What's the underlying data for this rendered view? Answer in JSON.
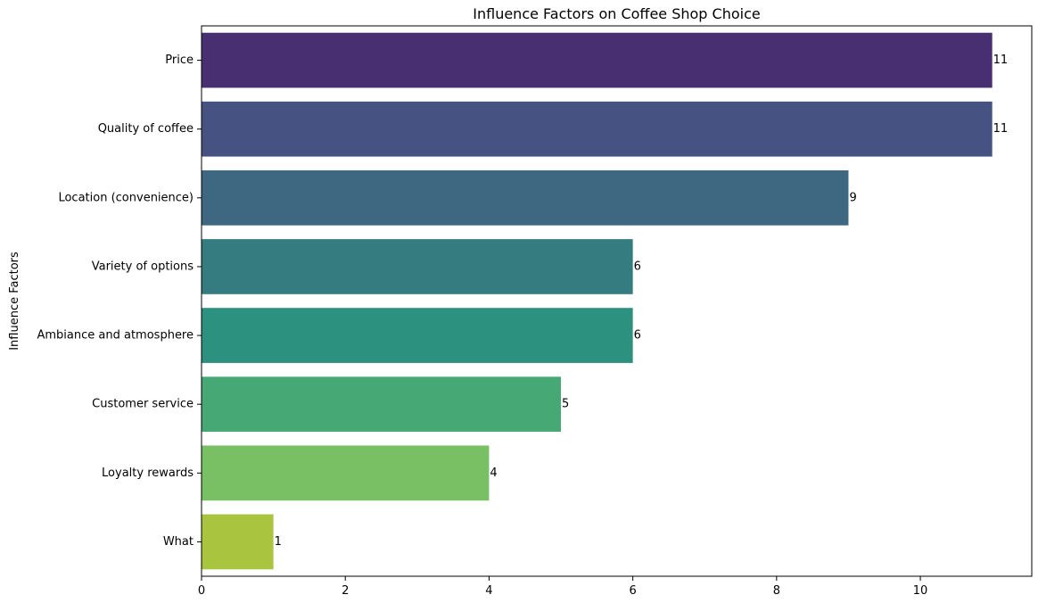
{
  "chart_data": {
    "type": "bar",
    "orientation": "horizontal",
    "title": "Influence Factors on Coffee Shop Choice",
    "xlabel": "",
    "ylabel": "Influence Factors",
    "categories": [
      "Price",
      "Quality of coffee",
      "Location (convenience)",
      "Variety of options",
      "Ambiance and atmosphere",
      "Customer service",
      "Loyalty rewards",
      "What"
    ],
    "values": [
      11,
      11,
      9,
      6,
      6,
      5,
      4,
      1
    ],
    "data_labels": [
      "11",
      "11",
      "9",
      "6",
      "6",
      "5",
      "4",
      "1"
    ],
    "xlim": [
      0,
      11.55
    ],
    "xticks": [
      0,
      2,
      4,
      6,
      8,
      10
    ],
    "xtick_labels": [
      "0",
      "2",
      "4",
      "6",
      "8",
      "10"
    ],
    "colors": [
      "#482f71",
      "#455282",
      "#3e6882",
      "#347c7f",
      "#2c917e",
      "#46a874",
      "#79bf64",
      "#a9c540"
    ],
    "grid": false,
    "legend": "none"
  }
}
